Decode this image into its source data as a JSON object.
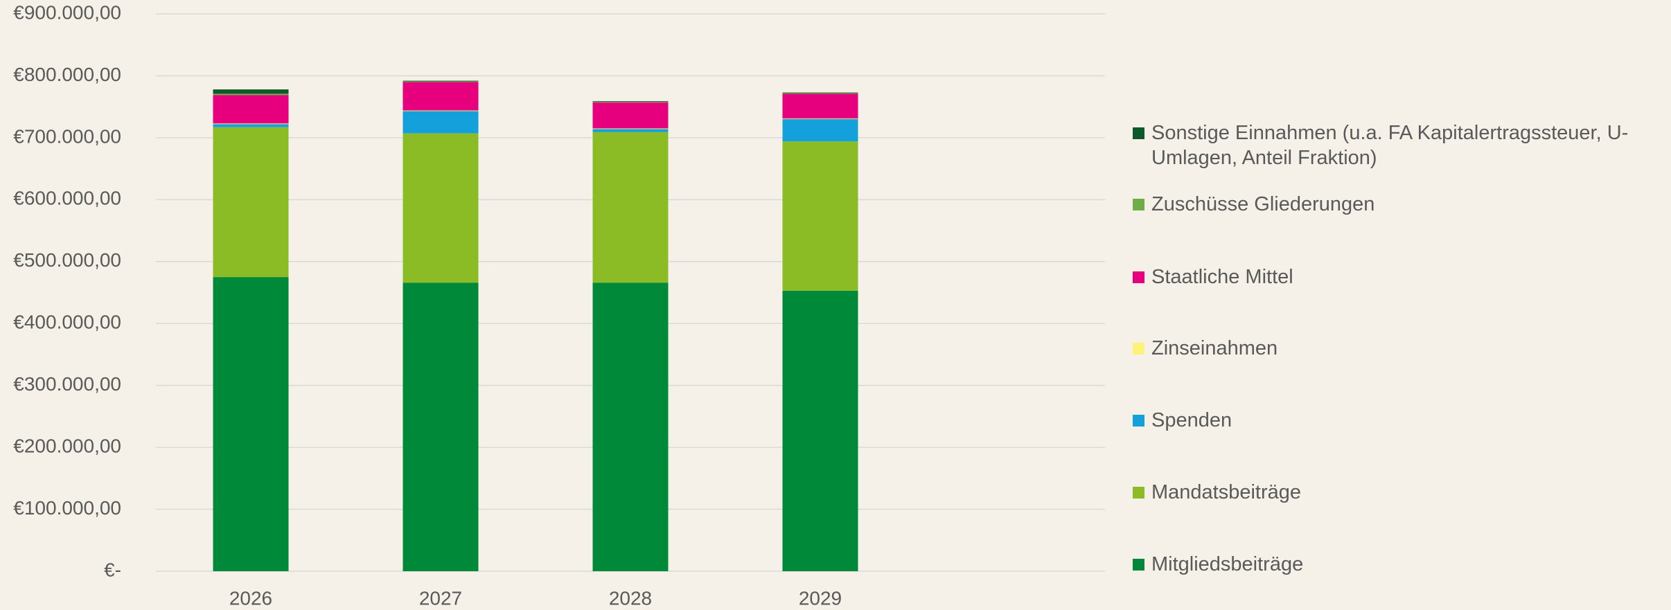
{
  "chart_data": {
    "type": "stacked_bar",
    "categories": [
      "2026",
      "2027",
      "2028",
      "2029"
    ],
    "series": [
      {
        "name": "Mitgliedsbeiträge",
        "color": "#008939",
        "values": [
          475000,
          466000,
          466000,
          453000
        ]
      },
      {
        "name": "Mandatsbeiträge",
        "color": "#8bbb25",
        "values": [
          242000,
          241000,
          243000,
          241000
        ]
      },
      {
        "name": "Spenden",
        "color": "#14a1db",
        "values": [
          5000,
          36000,
          5000,
          36000
        ]
      },
      {
        "name": "Zinseinahmen",
        "color": "#fff17a",
        "values": [
          1000,
          1000,
          1000,
          1000
        ]
      },
      {
        "name": "Staatliche Mittel",
        "color": "#e6007e",
        "values": [
          46000,
          46000,
          42000,
          40000
        ]
      },
      {
        "name": "Zuschüsse Gliederungen",
        "color": "#70ad47",
        "values": [
          2000,
          1000,
          1000,
          1000
        ]
      },
      {
        "name": "Sonstige Einnahmen (u.a. FA Kapitalertragssteuer, U-Umlagen, Anteil Fraktion)",
        "color": "#0b5a2a",
        "values": [
          7000,
          1000,
          1000,
          1000
        ]
      }
    ],
    "ylim": [
      0,
      900000
    ],
    "yticks": [
      {
        "value": 0,
        "label": "€-"
      },
      {
        "value": 100000,
        "label": "€100.000,00"
      },
      {
        "value": 200000,
        "label": "€200.000,00"
      },
      {
        "value": 300000,
        "label": "€300.000,00"
      },
      {
        "value": 400000,
        "label": "€400.000,00"
      },
      {
        "value": 500000,
        "label": "€500.000,00"
      },
      {
        "value": 600000,
        "label": "€600.000,00"
      },
      {
        "value": 700000,
        "label": "€700.000,00"
      },
      {
        "value": 800000,
        "label": "€800.000,00"
      },
      {
        "value": 900000,
        "label": "€900.000,00"
      }
    ],
    "grid": true,
    "legend": "right"
  }
}
